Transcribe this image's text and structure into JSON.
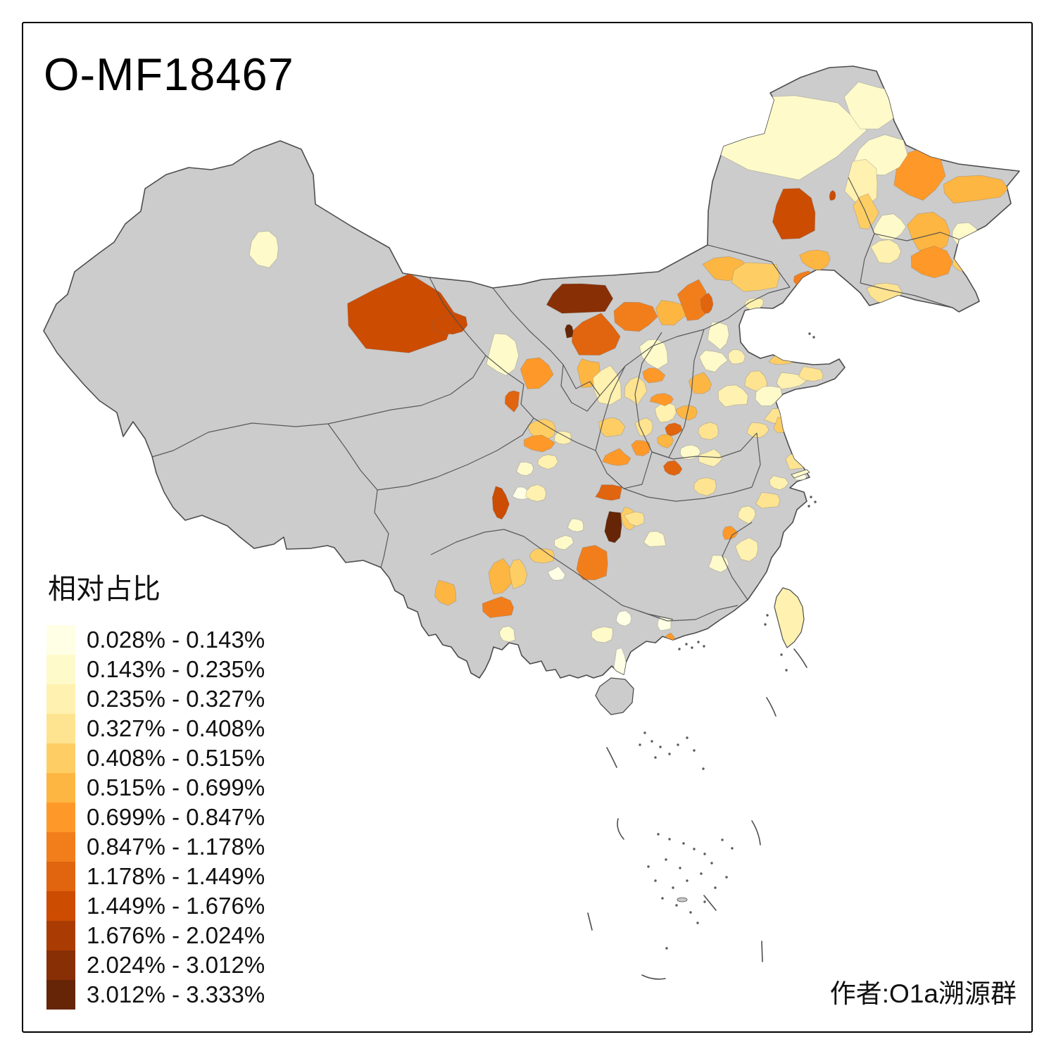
{
  "title": "O-MF18467",
  "legend": {
    "title": "相对占比",
    "classes": [
      {
        "label": "0.028% - 0.143%",
        "color": "#FFFFE5"
      },
      {
        "label": "0.143% - 0.235%",
        "color": "#FFFACA"
      },
      {
        "label": "0.235% - 0.327%",
        "color": "#FFF1AF"
      },
      {
        "label": "0.327% - 0.408%",
        "color": "#FEE391"
      },
      {
        "label": "0.408% - 0.515%",
        "color": "#FECE65"
      },
      {
        "label": "0.515% - 0.699%",
        "color": "#FEB642"
      },
      {
        "label": "0.699% - 0.847%",
        "color": "#FE9929"
      },
      {
        "label": "0.847% - 1.178%",
        "color": "#F27E1B"
      },
      {
        "label": "1.178% - 1.449%",
        "color": "#E1640E"
      },
      {
        "label": "1.449% - 1.676%",
        "color": "#CC4C02"
      },
      {
        "label": "1.676% - 2.024%",
        "color": "#AA3C03"
      },
      {
        "label": "2.024% - 3.012%",
        "color": "#882F05"
      },
      {
        "label": "3.012% - 3.333%",
        "color": "#662506"
      }
    ]
  },
  "attribution": "作者:O1a溯源群",
  "map": {
    "na_color": "#CCCCCC",
    "boundary_color": "#4D4D4D",
    "sea_color": "#FFFFFF"
  },
  "chart_data": {
    "type": "choropleth",
    "title": "O-MF18467",
    "value_label": "相对占比",
    "unit": "%",
    "bin_edges": [
      0.028,
      0.143,
      0.235,
      0.327,
      0.408,
      0.515,
      0.699,
      0.847,
      1.178,
      1.449,
      1.676,
      2.024,
      3.012,
      3.333
    ],
    "na_fill": "grey"
  }
}
